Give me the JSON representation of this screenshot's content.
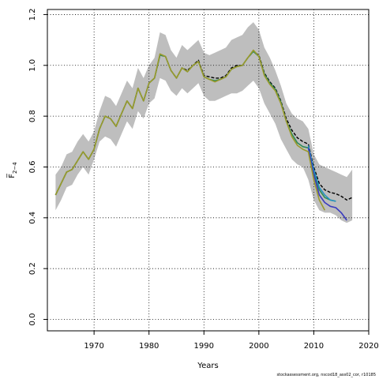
{
  "chart_data": {
    "type": "line",
    "xlabel": "Years",
    "ylabel": "F̅",
    "ylabel_sub": "2−4",
    "xlim": [
      1961.5,
      2020
    ],
    "ylim": [
      -0.045,
      1.22
    ],
    "xticks": [
      1970,
      1980,
      1990,
      2000,
      2010,
      2020
    ],
    "yticks": [
      0.0,
      0.2,
      0.4,
      0.6,
      0.8,
      1.0,
      1.2
    ],
    "x": [
      1963,
      1964,
      1965,
      1966,
      1967,
      1968,
      1969,
      1970,
      1971,
      1972,
      1973,
      1974,
      1975,
      1976,
      1977,
      1978,
      1979,
      1980,
      1981,
      1982,
      1983,
      1984,
      1985,
      1986,
      1987,
      1988,
      1989,
      1990,
      1991,
      1992,
      1993,
      1994,
      1995,
      1996,
      1997,
      1998,
      1999,
      2000,
      2001,
      2002,
      2003,
      2004,
      2005,
      2006,
      2007,
      2008,
      2009,
      2010,
      2011,
      2012,
      2013,
      2014,
      2015,
      2016,
      2017
    ],
    "band_upper": [
      0.57,
      0.6,
      0.65,
      0.66,
      0.7,
      0.73,
      0.7,
      0.74,
      0.82,
      0.88,
      0.87,
      0.84,
      0.89,
      0.94,
      0.91,
      0.99,
      0.95,
      1.0,
      1.03,
      1.13,
      1.12,
      1.06,
      1.03,
      1.08,
      1.06,
      1.08,
      1.1,
      1.05,
      1.04,
      1.05,
      1.06,
      1.07,
      1.1,
      1.11,
      1.12,
      1.15,
      1.17,
      1.14,
      1.07,
      1.03,
      0.98,
      0.92,
      0.85,
      0.81,
      0.79,
      0.78,
      0.75,
      0.65,
      0.61,
      0.6,
      0.59,
      0.58,
      0.57,
      0.56,
      0.59
    ],
    "band_lower": [
      0.43,
      0.47,
      0.52,
      0.53,
      0.57,
      0.6,
      0.57,
      0.63,
      0.7,
      0.72,
      0.71,
      0.68,
      0.73,
      0.78,
      0.75,
      0.82,
      0.79,
      0.85,
      0.87,
      0.95,
      0.94,
      0.9,
      0.88,
      0.91,
      0.89,
      0.91,
      0.93,
      0.88,
      0.86,
      0.86,
      0.87,
      0.88,
      0.89,
      0.89,
      0.9,
      0.92,
      0.94,
      0.91,
      0.85,
      0.81,
      0.77,
      0.71,
      0.67,
      0.63,
      0.61,
      0.6,
      0.55,
      0.47,
      0.43,
      0.42,
      0.42,
      0.41,
      0.39,
      0.38,
      0.39
    ],
    "series": [
      {
        "color": "#000000",
        "dashed": true,
        "width": 1.4,
        "x": [
          1963,
          1964,
          1965,
          1966,
          1967,
          1968,
          1969,
          1970,
          1971,
          1972,
          1973,
          1974,
          1975,
          1976,
          1977,
          1978,
          1979,
          1980,
          1981,
          1982,
          1983,
          1984,
          1985,
          1986,
          1987,
          1988,
          1989,
          1990,
          1991,
          1992,
          1993,
          1994,
          1995,
          1996,
          1997,
          1998,
          1999,
          2000,
          2001,
          2002,
          2003,
          2004,
          2005,
          2006,
          2007,
          2008,
          2009,
          2010,
          2011,
          2012,
          2013,
          2014,
          2015,
          2016,
          2017
        ],
        "values": [
          0.49,
          0.535,
          0.58,
          0.59,
          0.625,
          0.66,
          0.63,
          0.67,
          0.75,
          0.8,
          0.79,
          0.76,
          0.81,
          0.86,
          0.83,
          0.91,
          0.86,
          0.93,
          0.95,
          1.04,
          1.035,
          0.98,
          0.95,
          0.99,
          0.98,
          1.0,
          1.02,
          0.96,
          0.955,
          0.95,
          0.95,
          0.96,
          0.99,
          1.0,
          1.0,
          1.03,
          1.055,
          1.04,
          0.97,
          0.935,
          0.91,
          0.86,
          0.79,
          0.745,
          0.715,
          0.7,
          0.69,
          0.6,
          0.535,
          0.51,
          0.5,
          0.495,
          0.485,
          0.47,
          0.48
        ]
      },
      {
        "color": "#2e8b57",
        "dashed": false,
        "width": 1.6,
        "x": [
          1963,
          1964,
          1965,
          1966,
          1967,
          1968,
          1969,
          1970,
          1971,
          1972,
          1973,
          1974,
          1975,
          1976,
          1977,
          1978,
          1979,
          1980,
          1981,
          1982,
          1983,
          1984,
          1985,
          1986,
          1987,
          1988,
          1989,
          1990,
          1991,
          1992,
          1993,
          1994,
          1995,
          1996,
          1997,
          1998,
          1999,
          2000,
          2001,
          2002,
          2003,
          2004,
          2005,
          2006,
          2007,
          2008,
          2009,
          2010,
          2011,
          2012,
          2013,
          2014
        ],
        "values": [
          0.49,
          0.535,
          0.58,
          0.59,
          0.625,
          0.66,
          0.63,
          0.67,
          0.75,
          0.8,
          0.79,
          0.76,
          0.81,
          0.86,
          0.83,
          0.91,
          0.86,
          0.93,
          0.95,
          1.04,
          1.035,
          0.98,
          0.95,
          0.99,
          0.975,
          1.0,
          1.015,
          0.955,
          0.945,
          0.94,
          0.945,
          0.955,
          0.985,
          0.995,
          1.0,
          1.03,
          1.055,
          1.035,
          0.965,
          0.93,
          0.905,
          0.855,
          0.78,
          0.73,
          0.695,
          0.68,
          0.675,
          0.58,
          0.51,
          0.48,
          0.47,
          0.465
        ]
      },
      {
        "color": "#1e90c8",
        "dashed": false,
        "width": 1.4,
        "x": [
          2009,
          2010,
          2011,
          2012,
          2013,
          2014
        ],
        "values": [
          0.685,
          0.59,
          0.52,
          0.49,
          0.47,
          0.465
        ]
      },
      {
        "color": "#3b3bbf",
        "dashed": false,
        "width": 1.6,
        "x": [
          2009,
          2010,
          2011,
          2012,
          2013,
          2014,
          2015,
          2016
        ],
        "values": [
          0.675,
          0.57,
          0.49,
          0.46,
          0.445,
          0.44,
          0.42,
          0.39
        ]
      },
      {
        "color": "#9a9a2c",
        "dashed": false,
        "width": 1.6,
        "x": [
          1963,
          1964,
          1965,
          1966,
          1967,
          1968,
          1969,
          1970,
          1971,
          1972,
          1973,
          1974,
          1975,
          1976,
          1977,
          1978,
          1979,
          1980,
          1981,
          1982,
          1983,
          1984,
          1985,
          1986,
          1987,
          1988,
          1989,
          1990,
          1991,
          1992,
          1993,
          1994,
          1995,
          1996,
          1997,
          1998,
          1999,
          2000,
          2001,
          2002,
          2003,
          2004,
          2005,
          2006,
          2007,
          2008,
          2009,
          2010,
          2011,
          2012
        ],
        "values": [
          0.49,
          0.535,
          0.58,
          0.59,
          0.625,
          0.66,
          0.63,
          0.67,
          0.75,
          0.8,
          0.79,
          0.76,
          0.81,
          0.86,
          0.83,
          0.91,
          0.86,
          0.93,
          0.95,
          1.045,
          1.035,
          0.98,
          0.95,
          0.99,
          0.975,
          1.0,
          1.015,
          0.955,
          0.945,
          0.935,
          0.945,
          0.955,
          0.985,
          0.995,
          1.0,
          1.03,
          1.06,
          1.035,
          0.96,
          0.925,
          0.9,
          0.85,
          0.78,
          0.72,
          0.685,
          0.67,
          0.66,
          0.55,
          0.47,
          0.43
        ]
      }
    ],
    "colors": {
      "band": "#bebebe",
      "grid": "#000000",
      "axis": "#000000"
    }
  },
  "footer": "stockassessment.org, nscod18_ass02_cor, r10185"
}
